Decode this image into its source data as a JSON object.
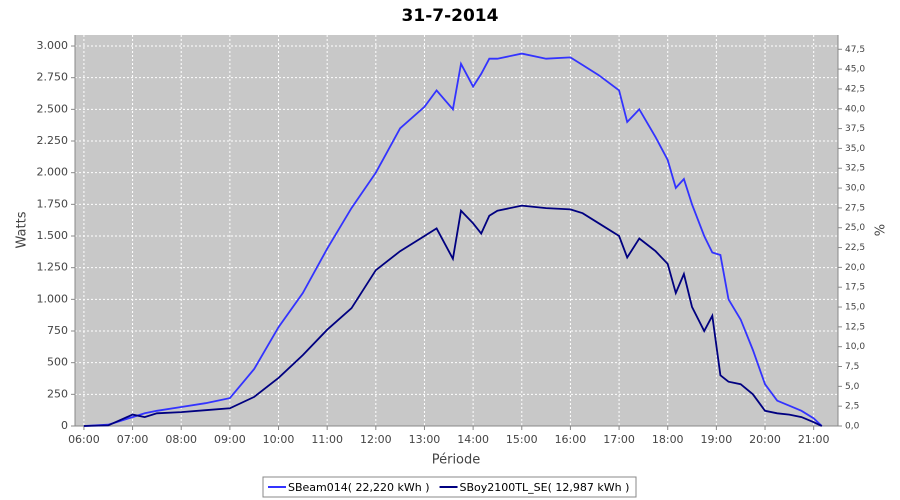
{
  "chart_data": {
    "type": "line",
    "title": "31-7-2014",
    "x_label": "Période",
    "y_label": "Watts",
    "y2_label": "%",
    "grid": true,
    "xlim": [
      "05:49",
      "21:30"
    ],
    "xticks": [
      "06:00",
      "07:00",
      "08:00",
      "09:00",
      "10:00",
      "11:00",
      "12:00",
      "13:00",
      "14:00",
      "15:00",
      "16:00",
      "17:00",
      "18:00",
      "19:00",
      "20:00",
      "21:00"
    ],
    "ylim": [
      0,
      3087
    ],
    "yticks": [
      0,
      250,
      500,
      750,
      {
        "value": 1000,
        "label": "1.000"
      },
      {
        "value": 1250,
        "label": "1.250"
      },
      {
        "value": 1500,
        "label": "1.500"
      },
      {
        "value": 1750,
        "label": "1.750"
      },
      {
        "value": 2000,
        "label": "2.000"
      },
      {
        "value": 2250,
        "label": "2.250"
      },
      {
        "value": 2500,
        "label": "2.500"
      },
      {
        "value": 2750,
        "label": "2.750"
      },
      {
        "value": 3000,
        "label": "3.000"
      }
    ],
    "y2lim": [
      0,
      49.3
    ],
    "y2ticks": [
      {
        "value": 0,
        "label": "0,0"
      },
      {
        "value": 2.5,
        "label": "2,5"
      },
      {
        "value": 5,
        "label": "5,0"
      },
      {
        "value": 7.5,
        "label": "7,5"
      },
      {
        "value": 10,
        "label": "10,0"
      },
      {
        "value": 12.5,
        "label": "12,5"
      },
      {
        "value": 15,
        "label": "15,0"
      },
      {
        "value": 17.5,
        "label": "17,5"
      },
      {
        "value": 20,
        "label": "20,0"
      },
      {
        "value": 22.5,
        "label": "22,5"
      },
      {
        "value": 25,
        "label": "25,0"
      },
      {
        "value": 27.5,
        "label": "27,5"
      },
      {
        "value": 30,
        "label": "30,0"
      },
      {
        "value": 32.5,
        "label": "32,5"
      },
      {
        "value": 35,
        "label": "35,0"
      },
      {
        "value": 37.5,
        "label": "37,5"
      },
      {
        "value": 40,
        "label": "40,0"
      },
      {
        "value": 42.5,
        "label": "42,5"
      },
      {
        "value": 45,
        "label": "45,0"
      },
      {
        "value": 47.5,
        "label": "47,5"
      }
    ],
    "x": [
      "06:00",
      "06:30",
      "07:00",
      "07:15",
      "07:30",
      "08:00",
      "08:30",
      "09:00",
      "09:30",
      "10:00",
      "10:30",
      "11:00",
      "11:30",
      "12:00",
      "12:30",
      "13:00",
      "13:15",
      "13:35",
      "13:45",
      "14:00",
      "14:10",
      "14:20",
      "14:30",
      "15:00",
      "15:30",
      "16:00",
      "16:15",
      "16:35",
      "17:00",
      "17:10",
      "17:25",
      "17:45",
      "18:00",
      "18:10",
      "18:20",
      "18:30",
      "18:45",
      "18:55",
      "19:05",
      "19:15",
      "19:30",
      "19:45",
      "20:00",
      "20:15",
      "20:30",
      "20:45",
      "21:00",
      "21:10"
    ],
    "series": [
      {
        "name": "SBeam014( 22,220 kWh )",
        "color": "#3333ff",
        "values": [
          0,
          10,
          70,
          100,
          120,
          150,
          180,
          220,
          450,
          780,
          1050,
          1400,
          1720,
          2000,
          2350,
          2520,
          2650,
          2500,
          2860,
          2680,
          2780,
          2900,
          2900,
          2940,
          2900,
          2910,
          2850,
          2770,
          2650,
          2400,
          2500,
          2280,
          2100,
          1880,
          1950,
          1750,
          1500,
          1370,
          1350,
          1000,
          840,
          600,
          330,
          200,
          160,
          120,
          60,
          0
        ]
      },
      {
        "name": "SBoy2100TL_SE( 12,987 kWh )",
        "color": "#000080",
        "values": [
          0,
          5,
          90,
          70,
          100,
          110,
          125,
          140,
          230,
          380,
          560,
          760,
          930,
          1230,
          1380,
          1500,
          1560,
          1320,
          1700,
          1600,
          1520,
          1660,
          1700,
          1740,
          1720,
          1710,
          1680,
          1600,
          1500,
          1330,
          1480,
          1380,
          1280,
          1050,
          1200,
          940,
          750,
          870,
          400,
          350,
          330,
          250,
          120,
          100,
          90,
          70,
          30,
          0
        ]
      }
    ]
  }
}
